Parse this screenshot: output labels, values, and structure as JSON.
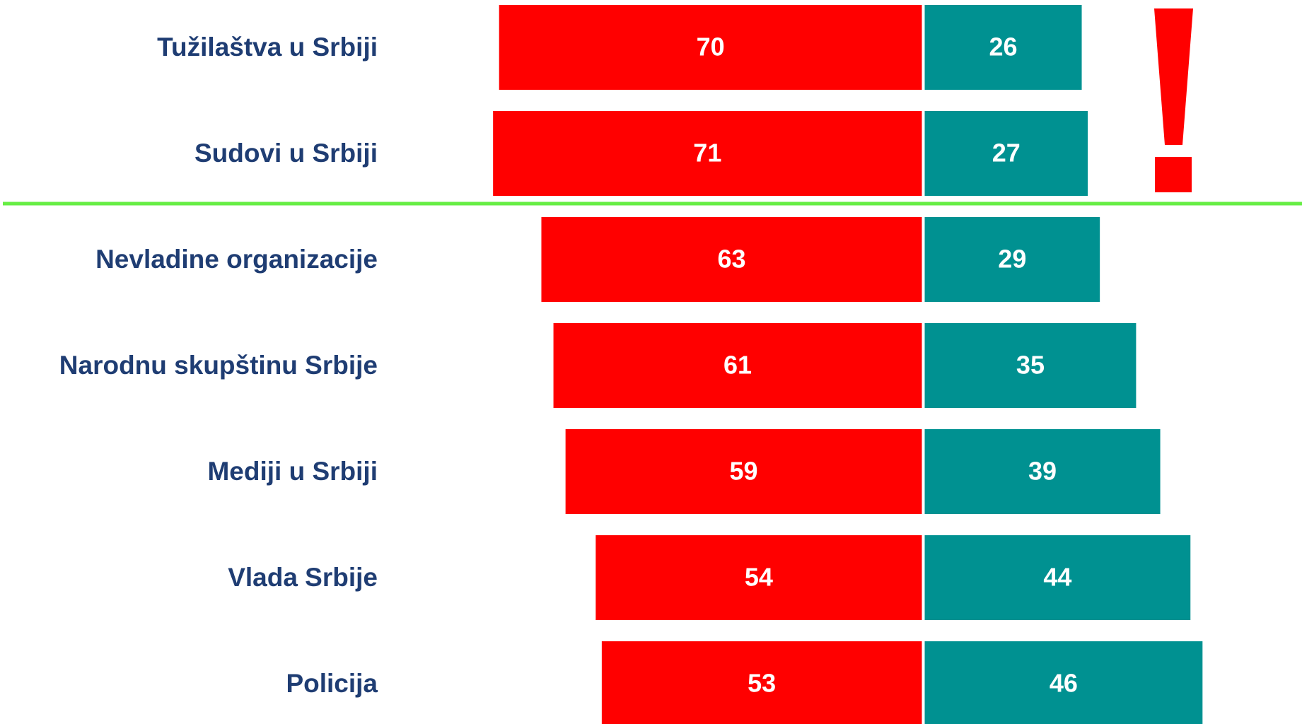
{
  "chart_data": {
    "type": "diverging-bar",
    "categories": [
      "Tužilaštva u Srbiji",
      "Sudovi u Srbiji",
      "Nevladine organizacije",
      "Narodnu skupštinu Srbije",
      "Mediji u Srbiji",
      "Vlada Srbije",
      "Policija"
    ],
    "series": [
      {
        "color": "#ff0000",
        "values": [
          70,
          71,
          63,
          61,
          59,
          54,
          53
        ]
      },
      {
        "color": "#009191",
        "values": [
          26,
          27,
          29,
          35,
          39,
          44,
          46
        ]
      }
    ]
  }
}
